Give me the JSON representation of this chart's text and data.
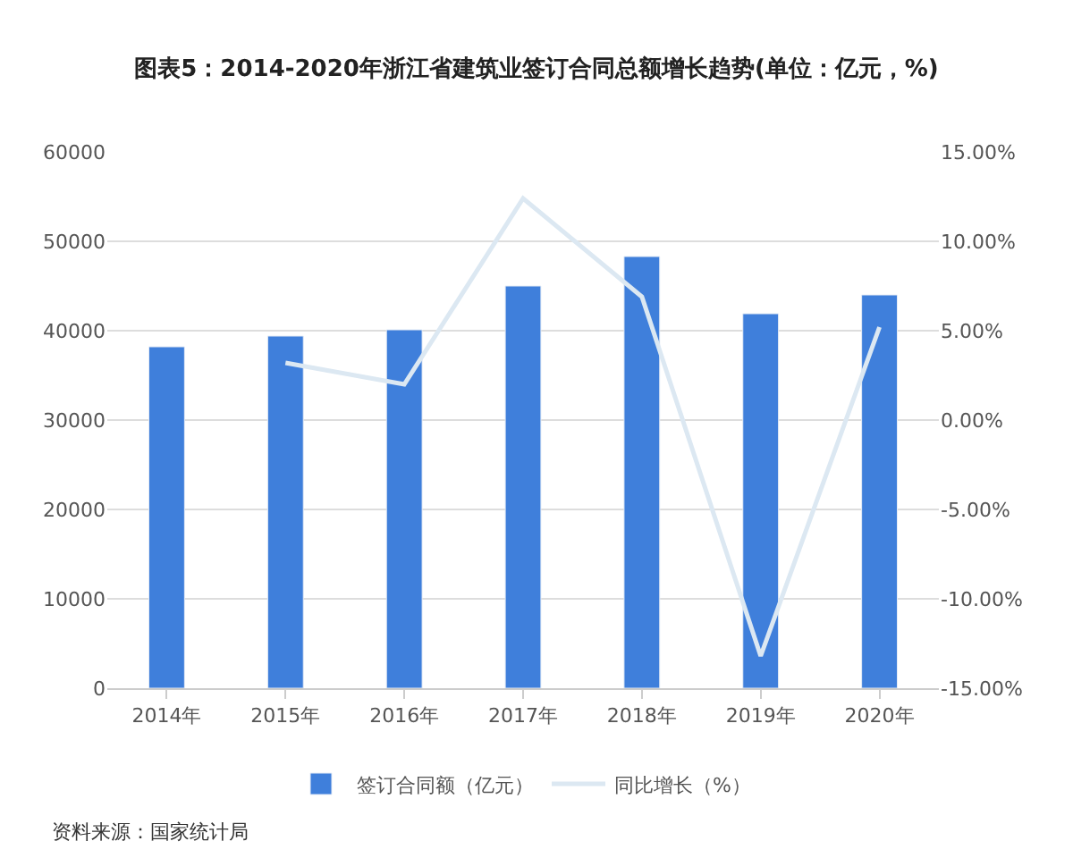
{
  "chart_data": {
    "type": "bar",
    "title": "图表5：2014-2020年浙江省建筑业签订合同总额增长趋势(单位：亿元，%)",
    "categories": [
      "2014年",
      "2015年",
      "2016年",
      "2017年",
      "2018年",
      "2019年",
      "2020年"
    ],
    "series": [
      {
        "name": "签订合同额（亿元）",
        "color": "#3f7fdb",
        "values": [
          38200,
          39400,
          40100,
          45000,
          48300,
          41900,
          44000
        ]
      },
      {
        "name": "同比增长（%）",
        "type": "line",
        "axis": "y2",
        "color": "#dce8f2",
        "values": [
          null,
          3.2,
          2.0,
          12.4,
          6.9,
          -13.2,
          5.2
        ]
      }
    ],
    "ylim": [
      0,
      60000
    ],
    "yticks": [
      0,
      10000,
      20000,
      30000,
      40000,
      50000,
      60000
    ],
    "y2lim": [
      -15,
      15
    ],
    "y2ticks": [
      {
        "value": -15,
        "label": "-15.00%"
      },
      {
        "value": -10,
        "label": "-10.00%"
      },
      {
        "value": -5,
        "label": "-5.00%"
      },
      {
        "value": 0,
        "label": "0.00%"
      },
      {
        "value": 5,
        "label": "5.00%"
      },
      {
        "value": 10,
        "label": "10.00%"
      },
      {
        "value": 15,
        "label": "15.00%"
      }
    ],
    "grid": "y",
    "legend": "bottom",
    "marker": "none",
    "annotations": [
      "资料来源：国家统计局"
    ]
  }
}
